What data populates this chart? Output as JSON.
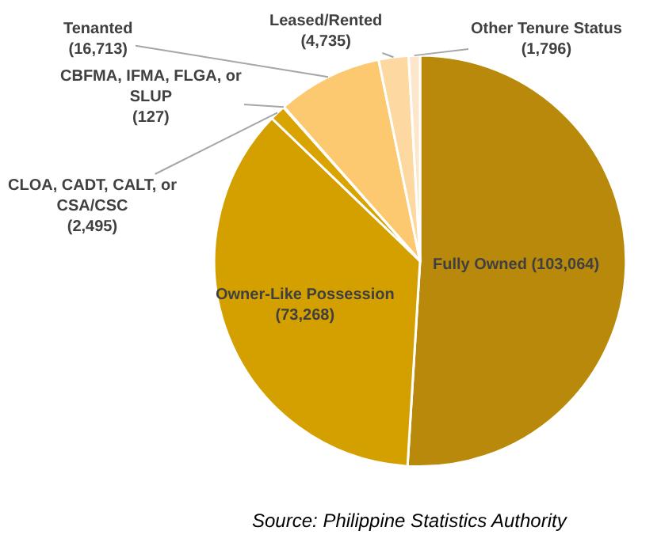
{
  "chart_data": {
    "type": "pie",
    "categories": [
      "Fully Owned",
      "Owner-Like Possession",
      "CLOA, CADT, CALT, or CSA/CSC",
      "CBFMA, IFMA, FLGA, or SLUP",
      "Tenanted",
      "Leased/Rented",
      "Other Tenure Status"
    ],
    "values": [
      103064,
      73268,
      2495,
      127,
      16713,
      4735,
      1796
    ],
    "value_labels": [
      "(103,064)",
      "(73,268)",
      "(2,495)",
      "(127)",
      "(16,713)",
      "(4,735)",
      "(1,796)"
    ],
    "colors": [
      "#b8890a",
      "#d4a000",
      "#d9a300",
      "#e0aa10",
      "#fcc870",
      "#fdd8a0",
      "#fde6cc"
    ],
    "annotations": [
      "Source: Philippine Statistics Authority"
    ],
    "legend": false
  }
}
